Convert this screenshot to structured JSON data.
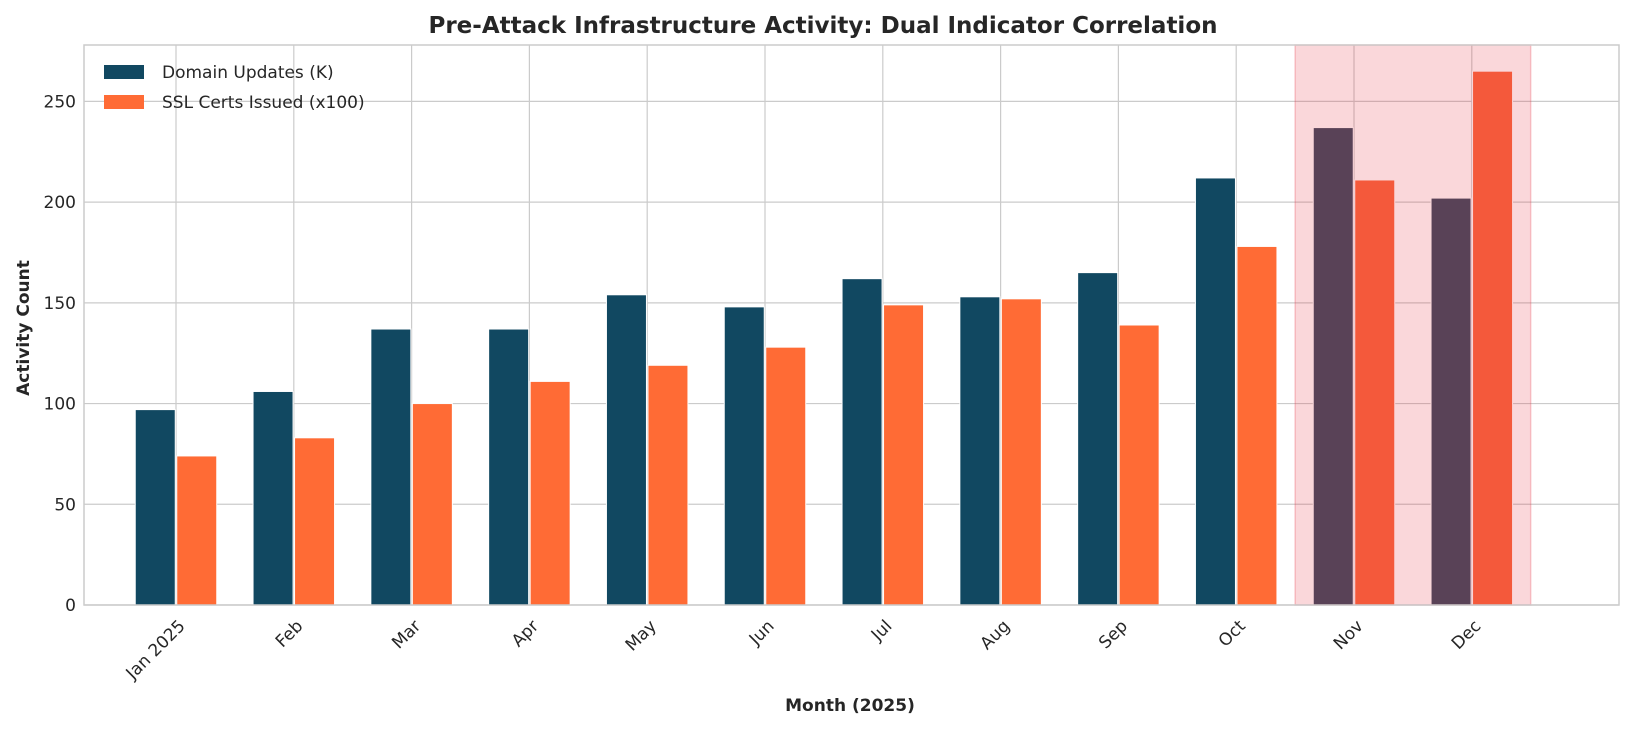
{
  "chart_data": {
    "type": "bar",
    "title": "Pre-Attack Infrastructure Activity: Dual Indicator Correlation",
    "xlabel": "Month (2025)",
    "ylabel": "Activity Count",
    "categories": [
      "Jan 2025",
      "Feb",
      "Mar",
      "Apr",
      "May",
      "Jun",
      "Jul",
      "Aug",
      "Sep",
      "Oct",
      "Nov",
      "Dec"
    ],
    "series": [
      {
        "name": "Domain Updates (K)",
        "color": "#114861",
        "highlight_color": "#36455C",
        "values": [
          97,
          106,
          137,
          137,
          154,
          148,
          162,
          153,
          165,
          212,
          237,
          202
        ]
      },
      {
        "name": "SSL Certs Issued (x100)",
        "color": "#FF6B35",
        "highlight_color": "#F86239",
        "values": [
          74,
          83,
          100,
          111,
          119,
          128,
          149,
          152,
          139,
          178,
          211,
          265
        ]
      }
    ],
    "ylim": [
      0,
      278
    ],
    "yticks": [
      0,
      50,
      100,
      150,
      200,
      250
    ],
    "grid": true,
    "legend_position": "top-left",
    "highlight": {
      "categories": [
        "Nov",
        "Dec"
      ],
      "color": "#F8D6DA"
    }
  }
}
